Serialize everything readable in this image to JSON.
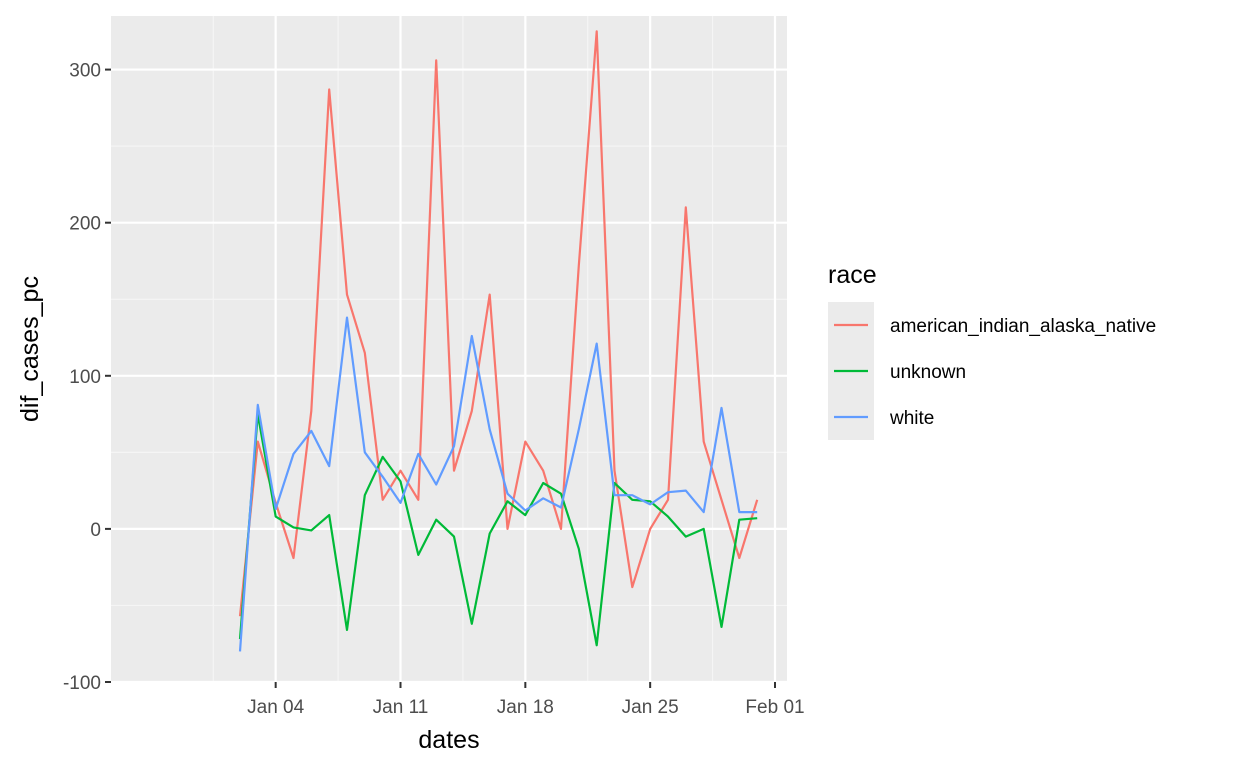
{
  "chart_data": {
    "type": "line",
    "xlabel": "dates",
    "ylabel": "dif_cases_pc",
    "xlim": [
      "2020-12-27",
      "2021-02-01"
    ],
    "ylim": [
      -100,
      335
    ],
    "x_ticks": [
      {
        "date": "2021-01-04",
        "label": "Jan 04"
      },
      {
        "date": "2021-01-11",
        "label": "Jan 11"
      },
      {
        "date": "2021-01-18",
        "label": "Jan 18"
      },
      {
        "date": "2021-01-25",
        "label": "Jan 25"
      },
      {
        "date": "2021-02-01",
        "label": "Feb 01"
      }
    ],
    "y_ticks": [
      {
        "value": -100,
        "label": "-100"
      },
      {
        "value": 0,
        "label": "0"
      },
      {
        "value": 100,
        "label": "100"
      },
      {
        "value": 200,
        "label": "200"
      },
      {
        "value": 300,
        "label": "300"
      }
    ],
    "grid": true,
    "legend": {
      "title": "race",
      "position": "right"
    },
    "x": [
      "2021-01-02",
      "2021-01-03",
      "2021-01-04",
      "2021-01-05",
      "2021-01-06",
      "2021-01-07",
      "2021-01-08",
      "2021-01-09",
      "2021-01-10",
      "2021-01-11",
      "2021-01-12",
      "2021-01-13",
      "2021-01-14",
      "2021-01-15",
      "2021-01-16",
      "2021-01-17",
      "2021-01-18",
      "2021-01-19",
      "2021-01-20",
      "2021-01-21",
      "2021-01-22",
      "2021-01-23",
      "2021-01-24",
      "2021-01-25",
      "2021-01-26",
      "2021-01-27",
      "2021-01-28",
      "2021-01-29",
      "2021-01-30",
      "2021-01-31"
    ],
    "series": [
      {
        "name": "american_indian_alaska_native",
        "color": "#F8766D",
        "values": [
          -57,
          57,
          17,
          -19,
          77,
          287,
          153,
          115,
          19,
          38,
          19,
          306,
          38,
          77,
          153,
          0,
          57,
          38,
          0,
          172,
          325,
          38,
          -38,
          0,
          19,
          210,
          57,
          19,
          -19,
          19
        ]
      },
      {
        "name": "unknown",
        "color": "#00BA38",
        "values": [
          -72,
          75,
          8,
          1,
          -1,
          9,
          -66,
          22,
          47,
          31,
          -17,
          6,
          -5,
          -62,
          -3,
          18,
          9,
          30,
          23,
          -13,
          -76,
          30,
          19,
          18,
          8,
          -5,
          0,
          -64,
          6,
          7
        ]
      },
      {
        "name": "white",
        "color": "#619CFF",
        "values": [
          -80,
          81,
          13,
          49,
          64,
          41,
          138,
          50,
          34,
          17,
          49,
          29,
          54,
          126,
          65,
          23,
          12,
          20,
          14,
          65,
          121,
          22,
          22,
          16,
          24,
          25,
          11,
          79,
          11,
          11
        ]
      }
    ]
  }
}
